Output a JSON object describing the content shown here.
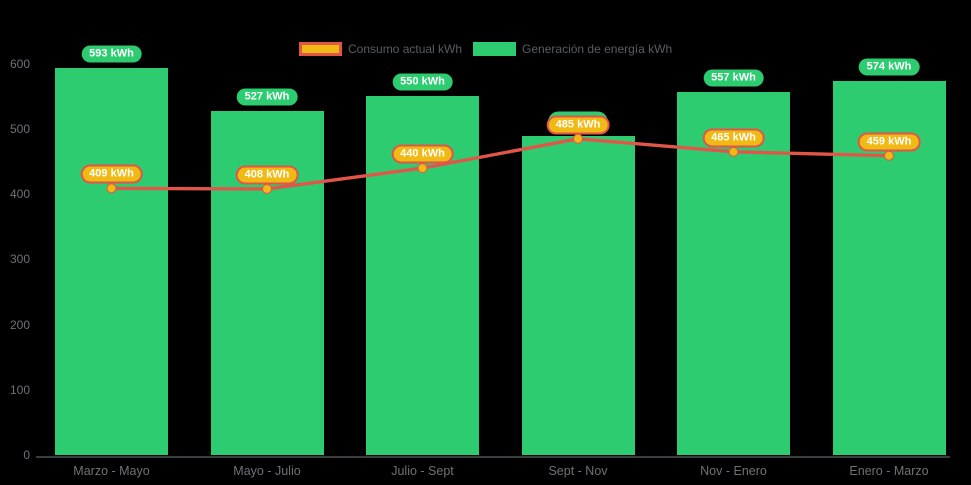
{
  "unit_suffix": "kWh",
  "legend": {
    "items": [
      {
        "label": "Consumo actual kWh",
        "fill": "#f0b914",
        "border": "#e25549"
      },
      {
        "label": "Generación de energía kWh",
        "fill": "#2ecc71",
        "border": "#2ecc71"
      }
    ]
  },
  "chart_data": {
    "type": "bar",
    "subtype": "bar-with-line-overlay",
    "categories": [
      "Marzo - Mayo",
      "Mayo - Julio",
      "Julio - Sept",
      "Sept - Nov",
      "Nov - Enero",
      "Enero - Marzo"
    ],
    "series": [
      {
        "name": "Generación de energía kWh",
        "kind": "bar",
        "color": "#2ecc71",
        "values": [
          593,
          527,
          550,
          490,
          557,
          574
        ],
        "labels_visible": [
          true,
          true,
          true,
          false,
          true,
          true
        ],
        "note": "Sept - Nov bar value estimated from bar height; its green label is hidden behind the 485 kWh consumption badge"
      },
      {
        "name": "Consumo actual kWh",
        "kind": "line",
        "color": "#e25549",
        "point_color": "#f0b914",
        "values": [
          409,
          408,
          440,
          485,
          465,
          459
        ]
      }
    ],
    "unit": "kWh",
    "y_ticks": [
      600,
      500,
      400,
      300,
      200,
      100,
      0
    ],
    "ylim": [
      0,
      620
    ],
    "grid": false,
    "legend_position": "top-center",
    "background": "#000000",
    "value_badges": {
      "generation_style": "green pill, white bold text, above each bar",
      "consumption_style": "gold pill with red border, white bold text, above each line point"
    }
  }
}
